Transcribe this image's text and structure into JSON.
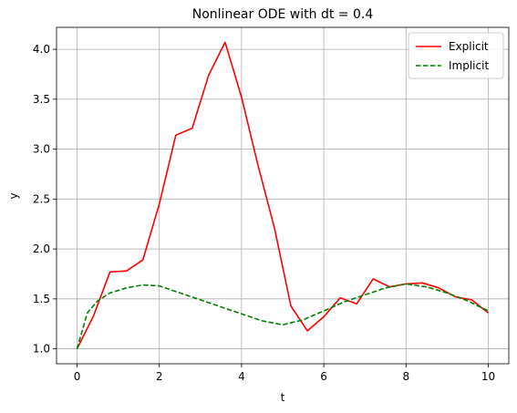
{
  "chart_data": {
    "type": "line",
    "title": "Nonlinear ODE with dt = 0.4",
    "xlabel": "t",
    "ylabel": "y",
    "xlim": [
      -0.5,
      10.5
    ],
    "ylim": [
      0.85,
      4.22
    ],
    "xticks": [
      0,
      2,
      4,
      6,
      8,
      10
    ],
    "yticks": [
      1.0,
      1.5,
      2.0,
      2.5,
      3.0,
      3.5,
      4.0
    ],
    "xtick_labels": [
      "0",
      "2",
      "4",
      "6",
      "8",
      "10"
    ],
    "ytick_labels": [
      "1.0",
      "1.5",
      "2.0",
      "2.5",
      "3.0",
      "3.5",
      "4.0"
    ],
    "grid": true,
    "legend_position": "top-right",
    "series": [
      {
        "name": "Explicit",
        "color": "#ff0000",
        "style": "solid",
        "x": [
          0,
          0.4,
          0.8,
          1.2,
          1.6,
          2.0,
          2.4,
          2.8,
          3.2,
          3.6,
          4.0,
          4.4,
          4.8,
          5.2,
          5.6,
          6.0,
          6.4,
          6.8,
          7.2,
          7.6,
          8.0,
          8.4,
          8.8,
          9.2,
          9.6,
          10.0
        ],
        "y": [
          1.0,
          1.33,
          1.77,
          1.78,
          1.89,
          2.45,
          3.14,
          3.21,
          3.74,
          4.07,
          3.52,
          2.84,
          2.21,
          1.43,
          1.18,
          1.32,
          1.51,
          1.45,
          1.7,
          1.62,
          1.65,
          1.66,
          1.61,
          1.52,
          1.49,
          1.36
        ]
      },
      {
        "name": "Implicit",
        "color": "#008000",
        "style": "dashed",
        "x": [
          0,
          0.25,
          0.5,
          0.8,
          1.2,
          1.6,
          2.0,
          2.5,
          3.0,
          3.5,
          4.0,
          4.5,
          5.0,
          5.5,
          6.0,
          6.5,
          7.0,
          7.5,
          8.0,
          8.5,
          9.0,
          9.5,
          10.0
        ],
        "y": [
          1.0,
          1.36,
          1.48,
          1.56,
          1.61,
          1.64,
          1.63,
          1.56,
          1.49,
          1.42,
          1.35,
          1.28,
          1.24,
          1.29,
          1.38,
          1.47,
          1.54,
          1.61,
          1.65,
          1.62,
          1.56,
          1.48,
          1.38
        ]
      }
    ]
  }
}
